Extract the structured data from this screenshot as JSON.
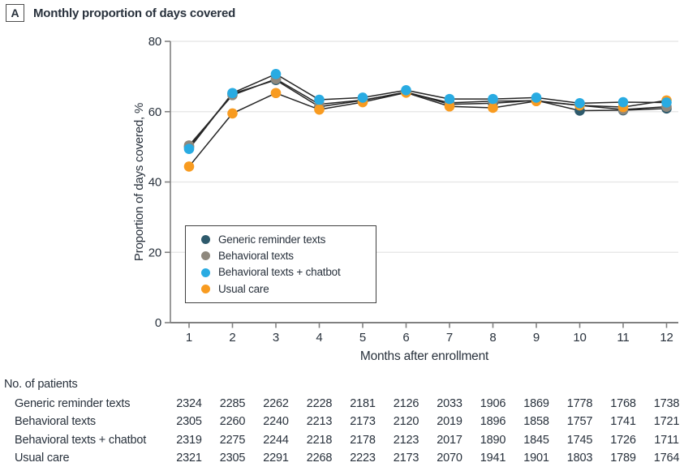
{
  "panel": {
    "label": "A",
    "title": "Monthly proportion of days covered"
  },
  "colors": {
    "text": "#28313c",
    "axis": "#808080",
    "grid": "#e4e4e4",
    "line": "#262626",
    "series_dark_teal": "#2e5a6c",
    "series_gray": "#8e887d",
    "series_blue": "#29abe2",
    "series_orange": "#f89b20"
  },
  "chart_data": {
    "type": "line",
    "title": "Monthly proportion of days covered",
    "x": [
      1,
      2,
      3,
      4,
      5,
      6,
      7,
      8,
      9,
      10,
      11,
      12
    ],
    "xlabel": "Months after enrollment",
    "ylabel": "Proportion of days covered, %",
    "ylim": [
      0,
      80
    ],
    "yticks": [
      0,
      20,
      40,
      60,
      80
    ],
    "grid": true,
    "legend_position": "inside-left-middle",
    "line_color": "#262626",
    "marker_draw_order": [
      0,
      1,
      3,
      2
    ],
    "series": [
      {
        "name": "Generic reminder texts",
        "color": "#2e5a6c",
        "values": [
          50.0,
          65.1,
          69.0,
          61.4,
          63.2,
          65.6,
          62.1,
          62.4,
          63.2,
          60.3,
          60.4,
          60.9
        ]
      },
      {
        "name": "Behavioral texts",
        "color": "#8e887d",
        "values": [
          50.4,
          64.7,
          69.3,
          62.1,
          63.3,
          65.5,
          62.5,
          63.0,
          63.1,
          61.8,
          60.6,
          61.4
        ]
      },
      {
        "name": "Behavioral texts + chatbot",
        "color": "#29abe2",
        "values": [
          49.4,
          65.3,
          70.7,
          63.4,
          64.0,
          66.1,
          63.6,
          63.6,
          64.0,
          62.4,
          62.7,
          62.6
        ]
      },
      {
        "name": "Usual care",
        "color": "#f89b20",
        "values": [
          44.4,
          59.5,
          65.3,
          60.6,
          62.7,
          65.4,
          61.5,
          61.1,
          63.0,
          61.8,
          61.3,
          63.2
        ]
      }
    ]
  },
  "patients_table": {
    "title": "No. of patients",
    "rows": [
      {
        "label": "Generic reminder texts",
        "values": [
          2324,
          2285,
          2262,
          2228,
          2181,
          2126,
          2033,
          1906,
          1869,
          1778,
          1768,
          1738
        ]
      },
      {
        "label": "Behavioral texts",
        "values": [
          2305,
          2260,
          2240,
          2213,
          2173,
          2120,
          2019,
          1896,
          1858,
          1757,
          1741,
          1721
        ]
      },
      {
        "label": "Behavioral texts + chatbot",
        "values": [
          2319,
          2275,
          2244,
          2218,
          2178,
          2123,
          2017,
          1890,
          1845,
          1745,
          1726,
          1711
        ]
      },
      {
        "label": "Usual care",
        "values": [
          2321,
          2305,
          2291,
          2268,
          2223,
          2173,
          2070,
          1941,
          1901,
          1803,
          1789,
          1764
        ]
      }
    ]
  }
}
